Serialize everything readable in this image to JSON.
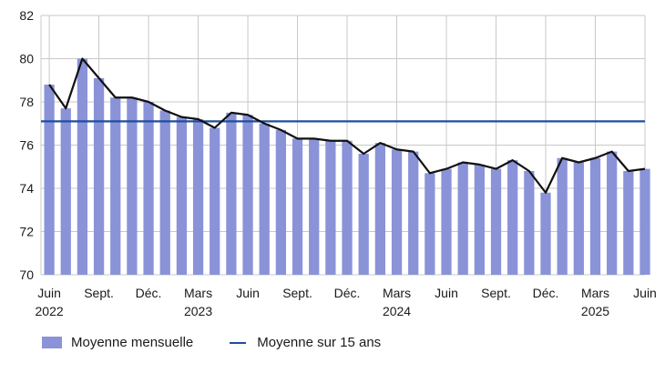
{
  "chart_data": {
    "type": "bar",
    "title": "",
    "xlabel": "",
    "ylabel": "",
    "ylim": [
      70,
      82
    ],
    "yticks": [
      70,
      72,
      74,
      76,
      78,
      80,
      82
    ],
    "grid": true,
    "x_tick_labels": [
      {
        "label": "Juin",
        "year": "2022",
        "index": 0
      },
      {
        "label": "Sept.",
        "year": "",
        "index": 3
      },
      {
        "label": "Déc.",
        "year": "",
        "index": 6
      },
      {
        "label": "Mars",
        "year": "2023",
        "index": 9
      },
      {
        "label": "Juin",
        "year": "",
        "index": 12
      },
      {
        "label": "Sept.",
        "year": "",
        "index": 15
      },
      {
        "label": "Déc.",
        "year": "",
        "index": 18
      },
      {
        "label": "Mars",
        "year": "2024",
        "index": 21
      },
      {
        "label": "Juin",
        "year": "",
        "index": 24
      },
      {
        "label": "Sept.",
        "year": "",
        "index": 27
      },
      {
        "label": "Déc.",
        "year": "",
        "index": 30
      },
      {
        "label": "Mars",
        "year": "2025",
        "index": 33
      },
      {
        "label": "Juin",
        "year": "",
        "index": 36
      }
    ],
    "categories": [
      "Juin 2022",
      "Juil. 2022",
      "Août 2022",
      "Sept. 2022",
      "Oct. 2022",
      "Nov. 2022",
      "Déc. 2022",
      "Janv. 2023",
      "Févr. 2023",
      "Mars 2023",
      "Avr. 2023",
      "Mai 2023",
      "Juin 2023",
      "Juil. 2023",
      "Août 2023",
      "Sept. 2023",
      "Oct. 2023",
      "Nov. 2023",
      "Déc. 2023",
      "Janv. 2024",
      "Févr. 2024",
      "Mars 2024",
      "Avr. 2024",
      "Mai 2024",
      "Juin 2024",
      "Juil. 2024",
      "Août 2024",
      "Sept. 2024",
      "Oct. 2024",
      "Nov. 2024",
      "Déc. 2024",
      "Janv. 2025",
      "Févr. 2025",
      "Mars 2025",
      "Avr. 2025",
      "Mai 2025",
      "Juin 2025"
    ],
    "series": [
      {
        "name": "Moyenne mensuelle",
        "type": "bar",
        "color": "#8a93d8",
        "values": [
          78.8,
          77.7,
          80.0,
          79.1,
          78.2,
          78.2,
          78.0,
          77.6,
          77.3,
          77.2,
          76.8,
          77.5,
          77.4,
          77.0,
          76.7,
          76.3,
          76.3,
          76.2,
          76.2,
          75.6,
          76.1,
          75.8,
          75.7,
          74.7,
          74.9,
          75.2,
          75.1,
          74.9,
          75.3,
          74.8,
          73.8,
          75.4,
          75.2,
          75.4,
          75.7,
          74.8,
          74.9
        ]
      },
      {
        "name": "",
        "type": "line",
        "color": "#111111",
        "values": [
          78.8,
          77.7,
          80.0,
          79.1,
          78.2,
          78.2,
          78.0,
          77.6,
          77.3,
          77.2,
          76.8,
          77.5,
          77.4,
          77.0,
          76.7,
          76.3,
          76.3,
          76.2,
          76.2,
          75.6,
          76.1,
          75.8,
          75.7,
          74.7,
          74.9,
          75.2,
          75.1,
          74.9,
          75.3,
          74.8,
          73.8,
          75.4,
          75.2,
          75.4,
          75.7,
          74.8,
          74.9
        ]
      },
      {
        "name": "Moyenne sur 15 ans",
        "type": "hline",
        "color": "#1f4e9c",
        "value": 77.1
      }
    ]
  },
  "legend": {
    "bar_label": "Moyenne mensuelle",
    "line_label": "Moyenne sur 15 ans"
  }
}
